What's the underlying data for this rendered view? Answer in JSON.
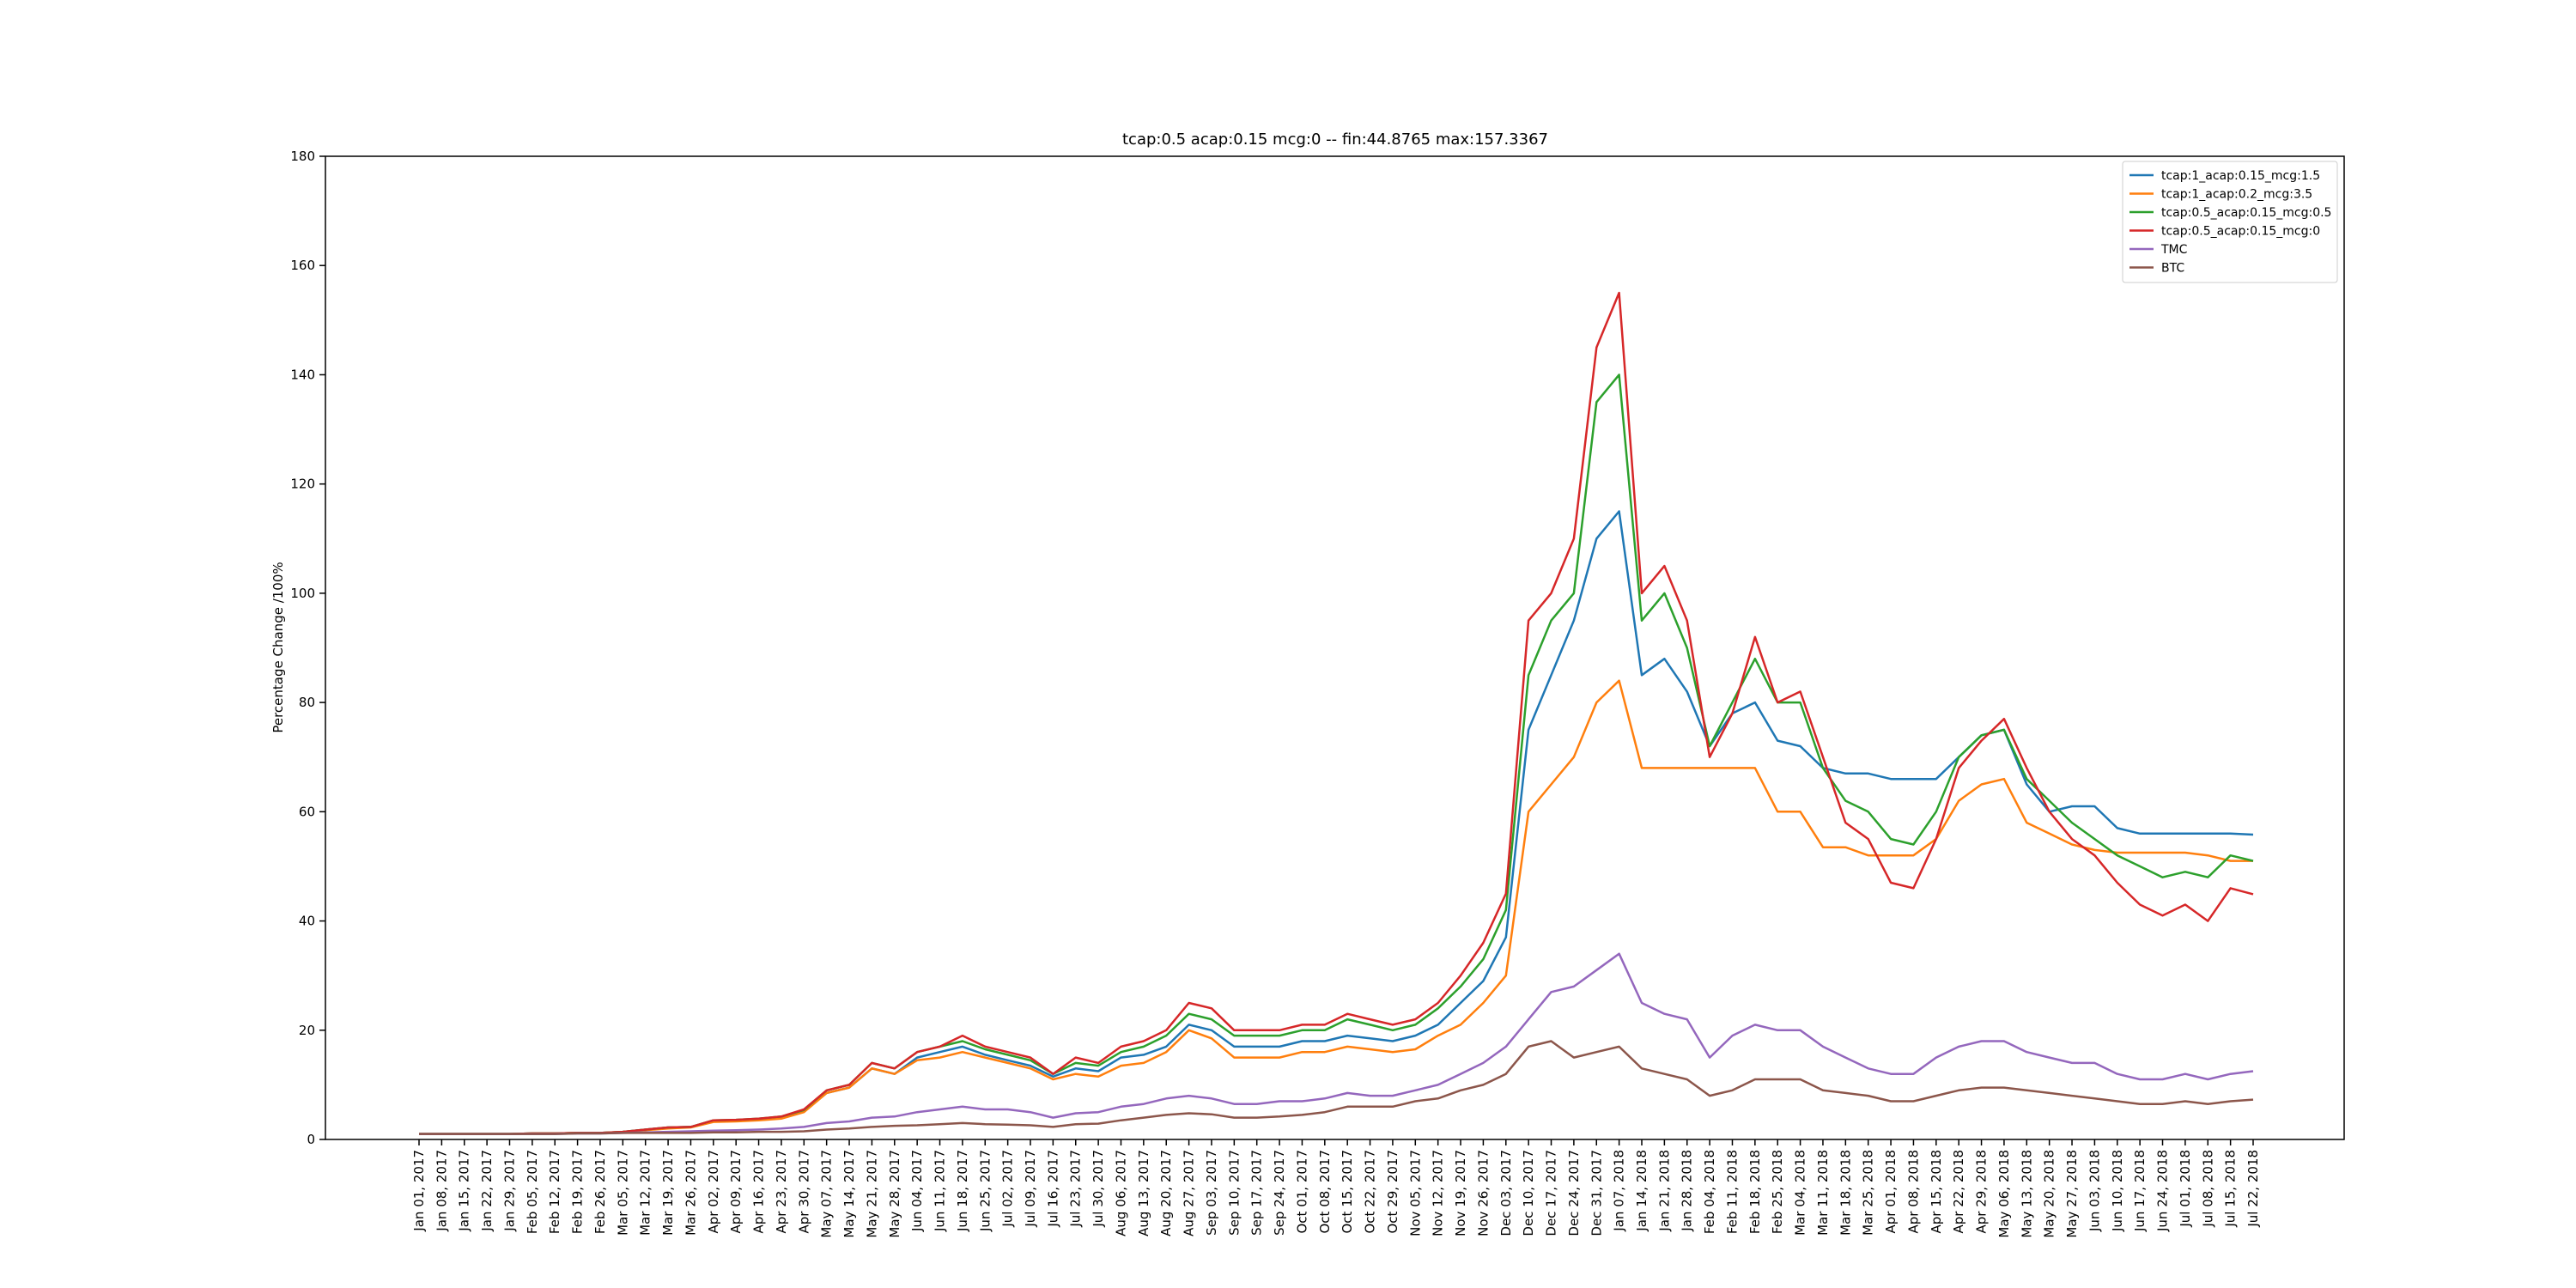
{
  "chart_data": {
    "type": "line",
    "title": "tcap:0.5 acap:0.15 mcg:0 -- fin:44.8765 max:157.3367",
    "y_label": "Percentage Change /100%",
    "categories": [
      "Jan 01, 2017",
      "Jan 08, 2017",
      "Jan 15, 2017",
      "Jan 22, 2017",
      "Jan 29, 2017",
      "Feb 05, 2017",
      "Feb 12, 2017",
      "Feb 19, 2017",
      "Feb 26, 2017",
      "Mar 05, 2017",
      "Mar 12, 2017",
      "Mar 19, 2017",
      "Mar 26, 2017",
      "Apr 02, 2017",
      "Apr 09, 2017",
      "Apr 16, 2017",
      "Apr 23, 2017",
      "Apr 30, 2017",
      "May 07, 2017",
      "May 14, 2017",
      "May 21, 2017",
      "May 28, 2017",
      "Jun 04, 2017",
      "Jun 11, 2017",
      "Jun 18, 2017",
      "Jun 25, 2017",
      "Jul 02, 2017",
      "Jul 09, 2017",
      "Jul 16, 2017",
      "Jul 23, 2017",
      "Jul 30, 2017",
      "Aug 06, 2017",
      "Aug 13, 2017",
      "Aug 20, 2017",
      "Aug 27, 2017",
      "Sep 03, 2017",
      "Sep 10, 2017",
      "Sep 17, 2017",
      "Sep 24, 2017",
      "Oct 01, 2017",
      "Oct 08, 2017",
      "Oct 15, 2017",
      "Oct 22, 2017",
      "Oct 29, 2017",
      "Nov 05, 2017",
      "Nov 12, 2017",
      "Nov 19, 2017",
      "Nov 26, 2017",
      "Dec 03, 2017",
      "Dec 10, 2017",
      "Dec 17, 2017",
      "Dec 24, 2017",
      "Dec 31, 2017",
      "Jan 07, 2018",
      "Jan 14, 2018",
      "Jan 21, 2018",
      "Jan 28, 2018",
      "Feb 04, 2018",
      "Feb 11, 2018",
      "Feb 18, 2018",
      "Feb 25, 2018",
      "Mar 04, 2018",
      "Mar 11, 2018",
      "Mar 18, 2018",
      "Mar 25, 2018",
      "Apr 01, 2018",
      "Apr 08, 2018",
      "Apr 15, 2018",
      "Apr 22, 2018",
      "Apr 29, 2018",
      "May 06, 2018",
      "May 13, 2018",
      "May 20, 2018",
      "May 27, 2018",
      "Jun 03, 2018",
      "Jun 10, 2018",
      "Jun 17, 2018",
      "Jun 24, 2018",
      "Jul 01, 2018",
      "Jul 08, 2018",
      "Jul 15, 2018",
      "Jul 22, 2018"
    ],
    "series": [
      {
        "name": "tcap:1_acap:0.15_mcg:1.5",
        "color": "#1f77b4",
        "values": [
          1,
          1,
          1,
          1,
          1,
          1.1,
          1.1,
          1.2,
          1.2,
          1.4,
          1.8,
          2.2,
          2.3,
          3.4,
          3.5,
          3.7,
          4,
          5.2,
          8.5,
          9.5,
          13,
          12,
          15,
          16,
          17,
          15.5,
          14.5,
          13.5,
          11.5,
          13,
          12.5,
          15,
          15.5,
          17,
          21,
          20,
          17,
          17,
          17,
          18,
          18,
          19,
          18.5,
          18,
          19,
          21,
          25,
          29,
          37,
          75,
          85,
          95,
          110,
          115,
          85,
          88,
          82,
          72,
          78,
          80,
          73,
          72,
          68,
          67,
          67,
          66,
          66,
          66,
          70,
          74,
          75,
          65,
          60,
          61,
          61,
          57,
          56,
          56,
          56,
          56,
          56,
          55.8
        ]
      },
      {
        "name": "tcap:1_acap:0.2_mcg:3.5",
        "color": "#ff7f0e",
        "values": [
          1,
          1,
          1,
          1,
          1,
          1.1,
          1.1,
          1.2,
          1.2,
          1.4,
          1.7,
          2,
          2.2,
          3.2,
          3.3,
          3.5,
          3.8,
          5,
          8.5,
          9.5,
          13,
          12,
          14.5,
          15,
          16,
          15,
          14,
          13,
          11,
          12,
          11.5,
          13.5,
          14,
          16,
          20,
          18.5,
          15,
          15,
          15,
          16,
          16,
          17,
          16.5,
          16,
          16.5,
          19,
          21,
          25,
          30,
          60,
          65,
          70,
          80,
          84,
          68,
          68,
          68,
          68,
          68,
          68,
          60,
          60,
          53.5,
          53.5,
          52,
          52,
          52,
          55,
          62,
          65,
          66,
          58,
          56,
          54,
          53,
          52.5,
          52.5,
          52.5,
          52.5,
          52,
          51,
          51
        ]
      },
      {
        "name": "tcap:0.5_acap:0.15_mcg:0.5",
        "color": "#2ca02c",
        "values": [
          1,
          1,
          1,
          1,
          1,
          1.1,
          1.1,
          1.2,
          1.2,
          1.4,
          1.8,
          2.2,
          2.3,
          3.5,
          3.6,
          3.8,
          4.2,
          5.4,
          9,
          10,
          14,
          13,
          16,
          17,
          18,
          16.5,
          15.5,
          14.5,
          12,
          14,
          13.5,
          16,
          17,
          19,
          23,
          22,
          19,
          19,
          19,
          20,
          20,
          22,
          21,
          20,
          21,
          24,
          28,
          33,
          42,
          85,
          95,
          100,
          135,
          140,
          95,
          100,
          90,
          72,
          80,
          88,
          80,
          80,
          68,
          62,
          60,
          55,
          54,
          60,
          70,
          74,
          75,
          66,
          62,
          58,
          55,
          52,
          50,
          48,
          49,
          48,
          52,
          51
        ]
      },
      {
        "name": "tcap:0.5_acap:0.15_mcg:0",
        "color": "#d62728",
        "values": [
          1,
          1,
          1,
          1,
          1,
          1.1,
          1.1,
          1.2,
          1.2,
          1.4,
          1.8,
          2.2,
          2.3,
          3.5,
          3.6,
          3.8,
          4.2,
          5.5,
          9,
          10,
          14,
          13,
          16,
          17,
          19,
          17,
          16,
          15,
          12,
          15,
          14,
          17,
          18,
          20,
          25,
          24,
          20,
          20,
          20,
          21,
          21,
          23,
          22,
          21,
          22,
          25,
          30,
          36,
          45,
          95,
          100,
          110,
          145,
          155,
          100,
          105,
          95,
          70,
          78,
          92,
          80,
          82,
          70,
          58,
          55,
          47,
          46,
          55,
          68,
          73,
          77,
          68,
          60,
          55,
          52,
          47,
          43,
          41,
          43,
          40,
          46,
          44.9
        ]
      },
      {
        "name": "TMC",
        "color": "#9467bd",
        "values": [
          1,
          1,
          1,
          1,
          1,
          1,
          1,
          1.1,
          1.1,
          1.2,
          1.3,
          1.4,
          1.5,
          1.6,
          1.7,
          1.8,
          2,
          2.3,
          3,
          3.3,
          4,
          4.2,
          5,
          5.5,
          6,
          5.5,
          5.5,
          5,
          4,
          4.8,
          5,
          6,
          6.5,
          7.5,
          8,
          7.5,
          6.5,
          6.5,
          7,
          7,
          7.5,
          8.5,
          8,
          8,
          9,
          10,
          12,
          14,
          17,
          22,
          27,
          28,
          31,
          34,
          25,
          23,
          22,
          15,
          19,
          21,
          20,
          20,
          17,
          15,
          13,
          12,
          12,
          15,
          17,
          18,
          18,
          16,
          15,
          14,
          14,
          12,
          11,
          11,
          12,
          11,
          12,
          12.5
        ]
      },
      {
        "name": "BTC",
        "color": "#8c564b",
        "values": [
          1,
          1,
          1,
          1,
          1,
          1,
          1,
          1.1,
          1.1,
          1.2,
          1.2,
          1.2,
          1.2,
          1.3,
          1.3,
          1.4,
          1.4,
          1.5,
          1.8,
          2,
          2.3,
          2.5,
          2.6,
          2.8,
          3,
          2.8,
          2.7,
          2.6,
          2.3,
          2.8,
          2.9,
          3.5,
          4,
          4.5,
          4.8,
          4.6,
          4,
          4,
          4.2,
          4.5,
          5,
          6,
          6,
          6,
          7,
          7.5,
          9,
          10,
          12,
          17,
          18,
          15,
          16,
          17,
          13,
          12,
          11,
          8,
          9,
          11,
          11,
          11,
          9,
          8.5,
          8,
          7,
          7,
          8,
          9,
          9.5,
          9.5,
          9,
          8.5,
          8,
          7.5,
          7,
          6.5,
          6.5,
          7,
          6.5,
          7,
          7.3
        ]
      }
    ],
    "ylim": [
      0,
      180
    ],
    "yticks": [
      0,
      20,
      40,
      60,
      80,
      100,
      120,
      140,
      160,
      180
    ],
    "grid": false,
    "legend": "upper right"
  }
}
